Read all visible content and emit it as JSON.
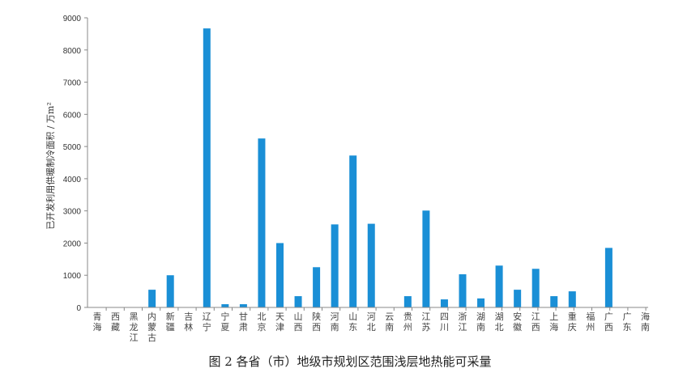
{
  "chart_data": {
    "type": "bar",
    "title": "",
    "caption": "图 2  各省（市）地级市规划区范围浅层地热能可采量",
    "xlabel": "",
    "ylabel": "已开发利用供暖制冷面积 / 万m²",
    "ylim": [
      0,
      9000
    ],
    "yticks": [
      0,
      1000,
      2000,
      3000,
      4000,
      5000,
      6000,
      7000,
      8000,
      9000
    ],
    "grid": false,
    "bar_color": "#1a8fd6",
    "categories": [
      "青海",
      "西藏",
      "黑龙江",
      "内蒙古",
      "新疆",
      "吉林",
      "辽宁",
      "宁夏",
      "甘肃",
      "北京",
      "天津",
      "山西",
      "陕西",
      "河南",
      "山东",
      "河北",
      "云南",
      "贵州",
      "江苏",
      "四川",
      "浙江",
      "湖南",
      "湖北",
      "安徽",
      "江西",
      "上海",
      "重庆",
      "福州",
      "广西",
      "广东",
      "海南"
    ],
    "values": [
      0,
      0,
      0,
      550,
      1000,
      0,
      8670,
      100,
      100,
      5250,
      2000,
      350,
      1250,
      2580,
      4720,
      2600,
      0,
      350,
      3010,
      250,
      1030,
      280,
      1300,
      550,
      1200,
      350,
      500,
      0,
      1850,
      0,
      0
    ]
  }
}
